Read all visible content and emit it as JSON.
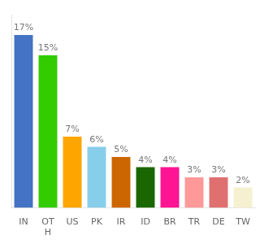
{
  "chart_data": {
    "type": "bar",
    "categories": [
      "IN",
      "OT\nH",
      "US",
      "PK",
      "IR",
      "ID",
      "BR",
      "TR",
      "DE",
      "TW"
    ],
    "values": [
      17,
      15,
      7,
      6,
      5,
      4,
      4,
      3,
      3,
      2
    ],
    "value_labels": [
      "17%",
      "15%",
      "7%",
      "6%",
      "5%",
      "4%",
      "4%",
      "3%",
      "3%",
      "2%"
    ],
    "colors": [
      "#4472c4",
      "#33cc00",
      "#ffa500",
      "#87ceeb",
      "#cc6600",
      "#1a6600",
      "#ff1493",
      "#ff9999",
      "#e07070",
      "#f5f0d0"
    ],
    "ylim": [
      0,
      19
    ],
    "data_labels": true,
    "tick_labels": "x",
    "grid": false
  }
}
